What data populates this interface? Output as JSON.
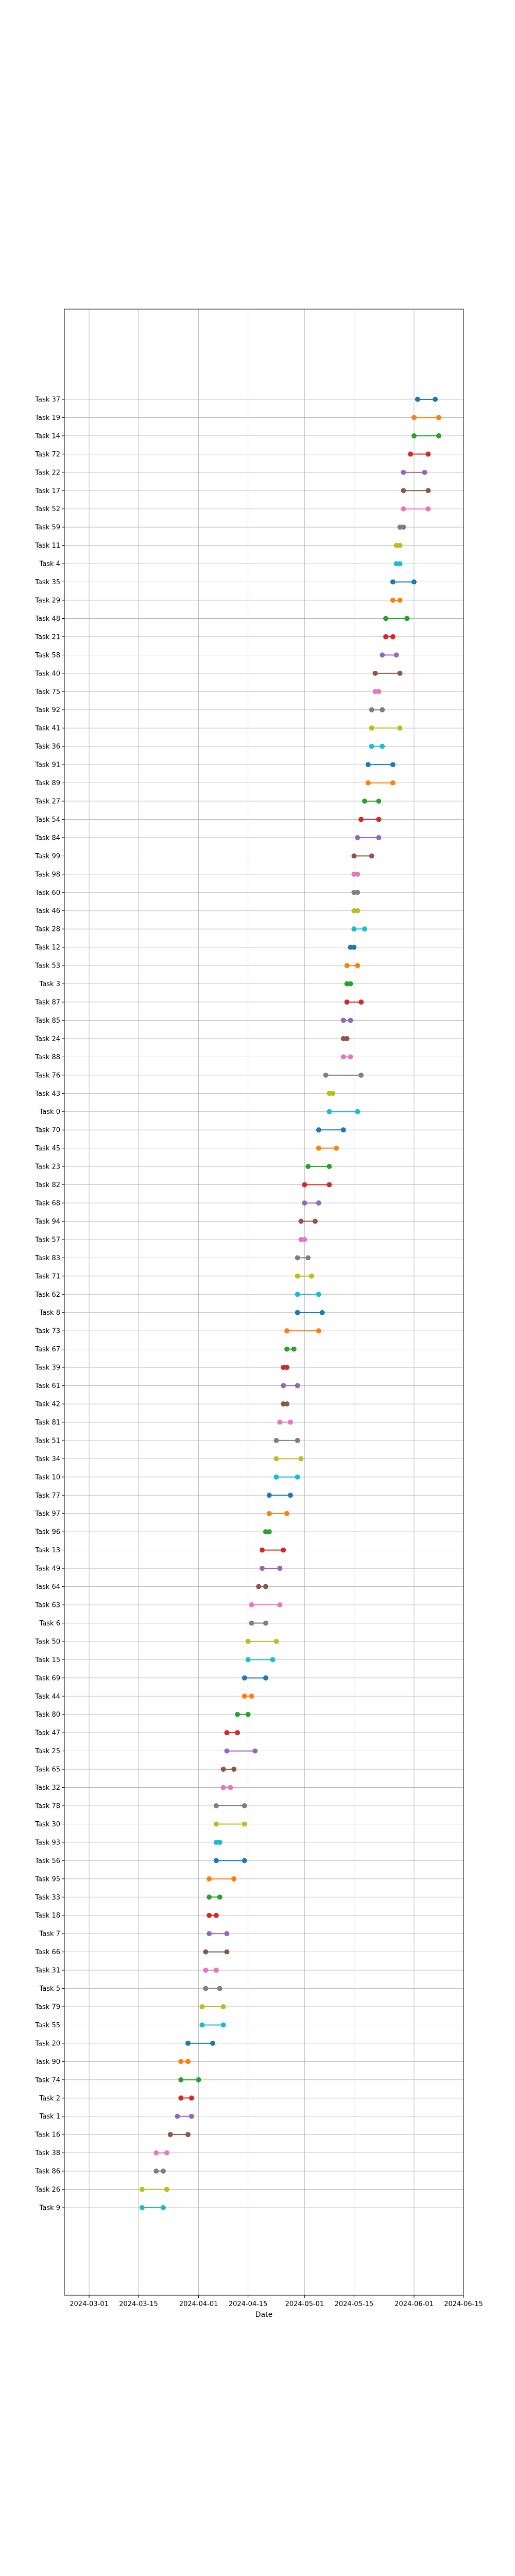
{
  "chart_data": {
    "type": "dumbbell",
    "title": "",
    "xlabel": "Date",
    "ylabel": "",
    "grid": true,
    "legend": false,
    "xlim": [
      "2024-02-23",
      "2024-06-15"
    ],
    "x_ticks": [
      "2024-03-01",
      "2024-03-15",
      "2024-04-01",
      "2024-04-15",
      "2024-05-01",
      "2024-05-15",
      "2024-06-01",
      "2024-06-15"
    ],
    "colors": [
      "#1f77b4",
      "#ff7f0e",
      "#2ca02c",
      "#d62728",
      "#9467bd",
      "#8c564b",
      "#e377c2",
      "#7f7f7f",
      "#bcbd22",
      "#17becf"
    ],
    "tasks": [
      {
        "label": "Task 37",
        "start": "2024-06-02",
        "end": "2024-06-07"
      },
      {
        "label": "Task 19",
        "start": "2024-06-01",
        "end": "2024-06-08"
      },
      {
        "label": "Task 14",
        "start": "2024-06-01",
        "end": "2024-06-08"
      },
      {
        "label": "Task 72",
        "start": "2024-05-31",
        "end": "2024-06-05"
      },
      {
        "label": "Task 22",
        "start": "2024-05-29",
        "end": "2024-06-04"
      },
      {
        "label": "Task 17",
        "start": "2024-05-29",
        "end": "2024-06-05"
      },
      {
        "label": "Task 52",
        "start": "2024-05-29",
        "end": "2024-06-05"
      },
      {
        "label": "Task 59",
        "start": "2024-05-28",
        "end": "2024-05-29"
      },
      {
        "label": "Task 11",
        "start": "2024-05-27",
        "end": "2024-05-28"
      },
      {
        "label": "Task 4",
        "start": "2024-05-27",
        "end": "2024-05-28"
      },
      {
        "label": "Task 35",
        "start": "2024-05-26",
        "end": "2024-06-01"
      },
      {
        "label": "Task 29",
        "start": "2024-05-26",
        "end": "2024-05-28"
      },
      {
        "label": "Task 48",
        "start": "2024-05-24",
        "end": "2024-05-30"
      },
      {
        "label": "Task 21",
        "start": "2024-05-24",
        "end": "2024-05-26"
      },
      {
        "label": "Task 58",
        "start": "2024-05-23",
        "end": "2024-05-27"
      },
      {
        "label": "Task 40",
        "start": "2024-05-21",
        "end": "2024-05-28"
      },
      {
        "label": "Task 75",
        "start": "2024-05-21",
        "end": "2024-05-22"
      },
      {
        "label": "Task 92",
        "start": "2024-05-20",
        "end": "2024-05-23"
      },
      {
        "label": "Task 41",
        "start": "2024-05-20",
        "end": "2024-05-28"
      },
      {
        "label": "Task 36",
        "start": "2024-05-20",
        "end": "2024-05-23"
      },
      {
        "label": "Task 91",
        "start": "2024-05-19",
        "end": "2024-05-26"
      },
      {
        "label": "Task 89",
        "start": "2024-05-19",
        "end": "2024-05-26"
      },
      {
        "label": "Task 27",
        "start": "2024-05-18",
        "end": "2024-05-22"
      },
      {
        "label": "Task 54",
        "start": "2024-05-17",
        "end": "2024-05-22"
      },
      {
        "label": "Task 84",
        "start": "2024-05-16",
        "end": "2024-05-22"
      },
      {
        "label": "Task 99",
        "start": "2024-05-15",
        "end": "2024-05-20"
      },
      {
        "label": "Task 98",
        "start": "2024-05-15",
        "end": "2024-05-16"
      },
      {
        "label": "Task 60",
        "start": "2024-05-15",
        "end": "2024-05-16"
      },
      {
        "label": "Task 46",
        "start": "2024-05-15",
        "end": "2024-05-16"
      },
      {
        "label": "Task 28",
        "start": "2024-05-15",
        "end": "2024-05-18"
      },
      {
        "label": "Task 12",
        "start": "2024-05-14",
        "end": "2024-05-15"
      },
      {
        "label": "Task 53",
        "start": "2024-05-13",
        "end": "2024-05-16"
      },
      {
        "label": "Task 3",
        "start": "2024-05-13",
        "end": "2024-05-14"
      },
      {
        "label": "Task 87",
        "start": "2024-05-13",
        "end": "2024-05-17"
      },
      {
        "label": "Task 85",
        "start": "2024-05-12",
        "end": "2024-05-14"
      },
      {
        "label": "Task 24",
        "start": "2024-05-12",
        "end": "2024-05-13"
      },
      {
        "label": "Task 88",
        "start": "2024-05-12",
        "end": "2024-05-14"
      },
      {
        "label": "Task 76",
        "start": "2024-05-07",
        "end": "2024-05-17"
      },
      {
        "label": "Task 43",
        "start": "2024-05-08",
        "end": "2024-05-09"
      },
      {
        "label": "Task 0",
        "start": "2024-05-08",
        "end": "2024-05-16"
      },
      {
        "label": "Task 70",
        "start": "2024-05-05",
        "end": "2024-05-12"
      },
      {
        "label": "Task 45",
        "start": "2024-05-05",
        "end": "2024-05-10"
      },
      {
        "label": "Task 23",
        "start": "2024-05-02",
        "end": "2024-05-08"
      },
      {
        "label": "Task 82",
        "start": "2024-05-01",
        "end": "2024-05-08"
      },
      {
        "label": "Task 68",
        "start": "2024-05-01",
        "end": "2024-05-05"
      },
      {
        "label": "Task 94",
        "start": "2024-04-30",
        "end": "2024-05-04"
      },
      {
        "label": "Task 57",
        "start": "2024-04-30",
        "end": "2024-05-01"
      },
      {
        "label": "Task 83",
        "start": "2024-04-29",
        "end": "2024-05-02"
      },
      {
        "label": "Task 71",
        "start": "2024-04-29",
        "end": "2024-05-03"
      },
      {
        "label": "Task 62",
        "start": "2024-04-29",
        "end": "2024-05-05"
      },
      {
        "label": "Task 8",
        "start": "2024-04-29",
        "end": "2024-05-06"
      },
      {
        "label": "Task 73",
        "start": "2024-04-26",
        "end": "2024-05-05"
      },
      {
        "label": "Task 67",
        "start": "2024-04-26",
        "end": "2024-04-28"
      },
      {
        "label": "Task 39",
        "start": "2024-04-25",
        "end": "2024-04-26"
      },
      {
        "label": "Task 61",
        "start": "2024-04-25",
        "end": "2024-04-29"
      },
      {
        "label": "Task 42",
        "start": "2024-04-25",
        "end": "2024-04-26"
      },
      {
        "label": "Task 81",
        "start": "2024-04-24",
        "end": "2024-04-27"
      },
      {
        "label": "Task 51",
        "start": "2024-04-23",
        "end": "2024-04-29"
      },
      {
        "label": "Task 34",
        "start": "2024-04-23",
        "end": "2024-04-30"
      },
      {
        "label": "Task 10",
        "start": "2024-04-23",
        "end": "2024-04-29"
      },
      {
        "label": "Task 77",
        "start": "2024-04-21",
        "end": "2024-04-27"
      },
      {
        "label": "Task 97",
        "start": "2024-04-21",
        "end": "2024-04-26"
      },
      {
        "label": "Task 96",
        "start": "2024-04-20",
        "end": "2024-04-21"
      },
      {
        "label": "Task 13",
        "start": "2024-04-19",
        "end": "2024-04-25"
      },
      {
        "label": "Task 49",
        "start": "2024-04-19",
        "end": "2024-04-24"
      },
      {
        "label": "Task 64",
        "start": "2024-04-18",
        "end": "2024-04-20"
      },
      {
        "label": "Task 63",
        "start": "2024-04-16",
        "end": "2024-04-24"
      },
      {
        "label": "Task 6",
        "start": "2024-04-16",
        "end": "2024-04-20"
      },
      {
        "label": "Task 50",
        "start": "2024-04-15",
        "end": "2024-04-23"
      },
      {
        "label": "Task 15",
        "start": "2024-04-15",
        "end": "2024-04-22"
      },
      {
        "label": "Task 69",
        "start": "2024-04-14",
        "end": "2024-04-20"
      },
      {
        "label": "Task 44",
        "start": "2024-04-14",
        "end": "2024-04-16"
      },
      {
        "label": "Task 80",
        "start": "2024-04-12",
        "end": "2024-04-15"
      },
      {
        "label": "Task 47",
        "start": "2024-04-09",
        "end": "2024-04-12"
      },
      {
        "label": "Task 25",
        "start": "2024-04-09",
        "end": "2024-04-17"
      },
      {
        "label": "Task 65",
        "start": "2024-04-08",
        "end": "2024-04-11"
      },
      {
        "label": "Task 32",
        "start": "2024-04-08",
        "end": "2024-04-10"
      },
      {
        "label": "Task 78",
        "start": "2024-04-06",
        "end": "2024-04-14"
      },
      {
        "label": "Task 30",
        "start": "2024-04-06",
        "end": "2024-04-14"
      },
      {
        "label": "Task 93",
        "start": "2024-04-06",
        "end": "2024-04-07"
      },
      {
        "label": "Task 56",
        "start": "2024-04-06",
        "end": "2024-04-14"
      },
      {
        "label": "Task 95",
        "start": "2024-04-04",
        "end": "2024-04-11"
      },
      {
        "label": "Task 33",
        "start": "2024-04-04",
        "end": "2024-04-07"
      },
      {
        "label": "Task 18",
        "start": "2024-04-04",
        "end": "2024-04-06"
      },
      {
        "label": "Task 7",
        "start": "2024-04-04",
        "end": "2024-04-09"
      },
      {
        "label": "Task 66",
        "start": "2024-04-03",
        "end": "2024-04-09"
      },
      {
        "label": "Task 31",
        "start": "2024-04-03",
        "end": "2024-04-06"
      },
      {
        "label": "Task 5",
        "start": "2024-04-03",
        "end": "2024-04-07"
      },
      {
        "label": "Task 79",
        "start": "2024-04-02",
        "end": "2024-04-08"
      },
      {
        "label": "Task 55",
        "start": "2024-04-02",
        "end": "2024-04-08"
      },
      {
        "label": "Task 20",
        "start": "2024-03-29",
        "end": "2024-04-05"
      },
      {
        "label": "Task 90",
        "start": "2024-03-27",
        "end": "2024-03-29"
      },
      {
        "label": "Task 74",
        "start": "2024-03-27",
        "end": "2024-04-01"
      },
      {
        "label": "Task 2",
        "start": "2024-03-27",
        "end": "2024-03-30"
      },
      {
        "label": "Task 1",
        "start": "2024-03-26",
        "end": "2024-03-30"
      },
      {
        "label": "Task 16",
        "start": "2024-03-24",
        "end": "2024-03-29"
      },
      {
        "label": "Task 38",
        "start": "2024-03-20",
        "end": "2024-03-23"
      },
      {
        "label": "Task 86",
        "start": "2024-03-20",
        "end": "2024-03-22"
      },
      {
        "label": "Task 26",
        "start": "2024-03-16",
        "end": "2024-03-23"
      },
      {
        "label": "Task 9",
        "start": "2024-03-16",
        "end": "2024-03-22"
      }
    ]
  }
}
